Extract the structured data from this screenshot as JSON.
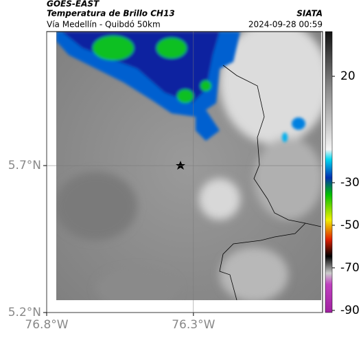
{
  "header": {
    "title": "GOES-EAST",
    "subtitle": "Temperatura de Brillo CH13",
    "region": "Vía Medellín - Quibdó 50km",
    "source": "SIATA",
    "datetime": "2024-09-28 00:59"
  },
  "map": {
    "xlim": [
      -76.8,
      -75.86
    ],
    "ylim": [
      5.2,
      6.156
    ],
    "xticks": [
      {
        "value": -76.8,
        "label": "76.8°W"
      },
      {
        "value": -76.3,
        "label": "76.3°W"
      }
    ],
    "yticks": [
      {
        "value": 5.7,
        "label": "5.7°N"
      },
      {
        "value": 5.2,
        "label": "5.2°N"
      }
    ],
    "grid": true
  },
  "colorbar": {
    "clim": [
      -91,
      41
    ],
    "ticks": [
      20,
      -30,
      -50,
      -70,
      -90
    ]
  }
}
